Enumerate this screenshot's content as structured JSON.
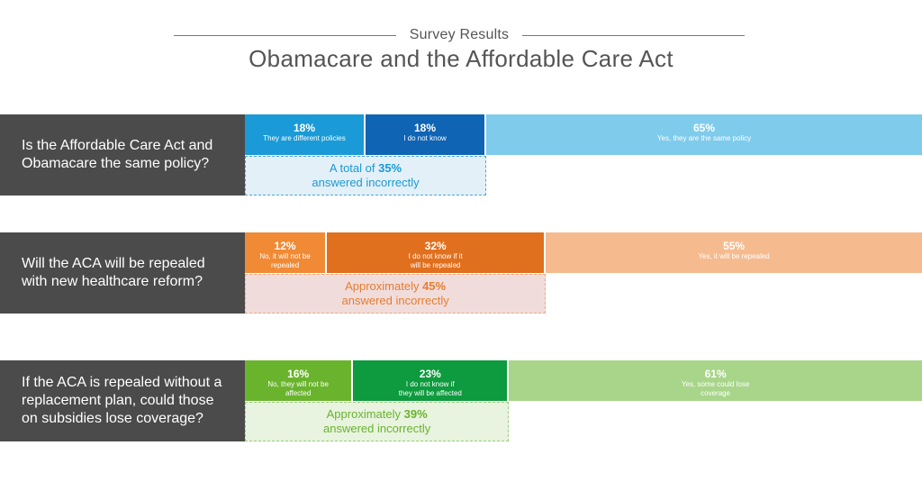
{
  "header": {
    "subtitle": "Survey Results",
    "title": "Obamacare and the Affordable Care Act"
  },
  "chart_data": {
    "type": "bar",
    "subtitle": "Survey Results",
    "title": "Obamacare and the Affordable Care Act",
    "questions": [
      {
        "question": "Is the Affordable Care Act and\nObamacare the same policy?",
        "series": [
          {
            "value": 18,
            "pct_label": "18%",
            "label": "They are different policies",
            "color": "#1a9ad6",
            "text_color": "#ffffff"
          },
          {
            "value": 18,
            "pct_label": "18%",
            "label": "I do not know",
            "color": "#0f64b4",
            "text_color": "#ffffff"
          },
          {
            "value": 65,
            "pct_label": "65%",
            "label": "Yes, they are the same policy",
            "color": "#7fcbeb",
            "text_color": "#ffffff"
          }
        ],
        "note_prefix": "A total of ",
        "note_value": "35%",
        "note_suffix": "answered incorrectly",
        "note_color": "#1a9ad6",
        "note_bg": "#e3f0f8",
        "note_border": "#4aa7d8"
      },
      {
        "question": "Will the ACA will be repealed\nwith new healthcare reform?",
        "series": [
          {
            "value": 12,
            "pct_label": "12%",
            "label": "No, it will not be\nrepealed",
            "color": "#f08a34",
            "text_color": "#ffffff"
          },
          {
            "value": 32,
            "pct_label": "32%",
            "label": "I do not know if it\nwill be repealed",
            "color": "#e0701e",
            "text_color": "#ffffff"
          },
          {
            "value": 55,
            "pct_label": "55%",
            "label": "Yes, it will be repealed",
            "color": "#f5bb8f",
            "text_color": "#ffffff"
          }
        ],
        "note_prefix": "Approximately ",
        "note_value": "45%",
        "note_suffix": "answered incorrectly",
        "note_color": "#e67e2e",
        "note_bg": "#f1dcdc",
        "note_border": "#eeaa77"
      },
      {
        "question": "If the ACA is repealed without a\nreplacement plan, could those\non subsidies lose coverage?",
        "series": [
          {
            "value": 16,
            "pct_label": "16%",
            "label": "No, they will not be\naffected",
            "color": "#6ab42d",
            "text_color": "#ffffff"
          },
          {
            "value": 23,
            "pct_label": "23%",
            "label": "I do not know if\nthey will be affected",
            "color": "#0e9a3e",
            "text_color": "#ffffff"
          },
          {
            "value": 61,
            "pct_label": "61%",
            "label": "Yes, some could lose\ncoverage",
            "color": "#a8d58a",
            "text_color": "#ffffff"
          }
        ],
        "note_prefix": "Approximately ",
        "note_value": "39%",
        "note_suffix": "answered incorrectly",
        "note_color": "#6ab42d",
        "note_bg": "#e8f3e0",
        "note_border": "#9bcc77"
      }
    ]
  }
}
